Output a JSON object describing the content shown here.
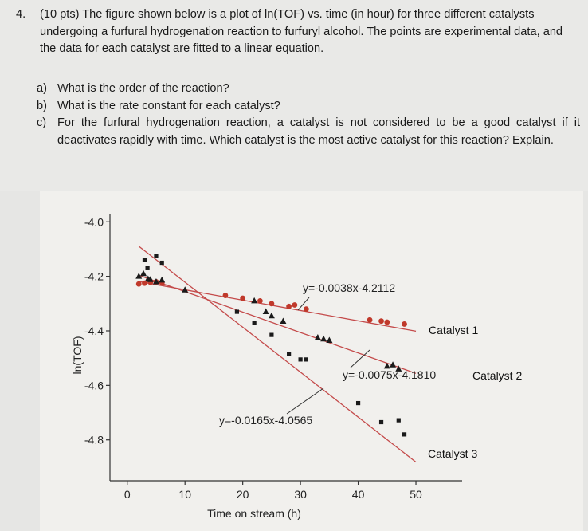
{
  "question": {
    "number": "4.",
    "stem": "(10 pts) The figure shown below is a plot of ln(TOF) vs. time (in hour) for three different catalysts undergoing a furfural hydrogenation reaction to furfuryl alcohol. The points are experimental data, and the data for each catalyst are fitted to a linear equation.",
    "parts": [
      {
        "label": "a)",
        "text": "What is the order of the reaction?"
      },
      {
        "label": "b)",
        "text": "What is the rate constant for each catalyst?"
      },
      {
        "label": "c)",
        "text": "For the furfural hydrogenation reaction, a catalyst is not considered to be a good catalyst if it deactivates rapidly with time. Which catalyst is the most active catalyst for this reaction? Explain."
      }
    ]
  },
  "chart_data": {
    "type": "scatter",
    "xlabel": "Time on stream (h)",
    "ylabel": "ln(TOF)",
    "xlim": [
      -3,
      58
    ],
    "ylim": [
      -4.95,
      -3.97
    ],
    "xticks": [
      0,
      10,
      20,
      30,
      40,
      50
    ],
    "yticks": [
      -4.0,
      -4.2,
      -4.4,
      -4.6,
      -4.8
    ],
    "ytick_labels": [
      "-4.0",
      "-4.2",
      "-4.4",
      "-4.6",
      "-4.8"
    ],
    "series": [
      {
        "name": "Catalyst 1",
        "marker": "circle",
        "color": "#c0392b",
        "equation": "y=-0.0038x-4.2112",
        "slope": -0.0038,
        "intercept": -4.2112,
        "fit_range": [
          2,
          50
        ],
        "points": [
          [
            2,
            -4.228
          ],
          [
            3,
            -4.225
          ],
          [
            4,
            -4.222
          ],
          [
            5,
            -4.22
          ],
          [
            6,
            -4.224
          ],
          [
            17,
            -4.27
          ],
          [
            20,
            -4.28
          ],
          [
            23,
            -4.29
          ],
          [
            25,
            -4.3
          ],
          [
            28,
            -4.31
          ],
          [
            29,
            -4.305
          ],
          [
            31,
            -4.32
          ],
          [
            42,
            -4.36
          ],
          [
            44,
            -4.364
          ],
          [
            45,
            -4.368
          ],
          [
            48,
            -4.375
          ]
        ]
      },
      {
        "name": "Catalyst 2",
        "marker": "triangle",
        "color": "#1a1a1a",
        "equation": "y=-0.0075x-4.1810",
        "slope": -0.0075,
        "intercept": -4.181,
        "fit_range": [
          2,
          50
        ],
        "points": [
          [
            2,
            -4.2
          ],
          [
            2.8,
            -4.19
          ],
          [
            3.6,
            -4.21
          ],
          [
            4,
            -4.212
          ],
          [
            5,
            -4.22
          ],
          [
            6,
            -4.214
          ],
          [
            10,
            -4.25
          ],
          [
            22,
            -4.29
          ],
          [
            24,
            -4.33
          ],
          [
            25,
            -4.345
          ],
          [
            27,
            -4.365
          ],
          [
            33,
            -4.425
          ],
          [
            34,
            -4.43
          ],
          [
            35,
            -4.435
          ],
          [
            45,
            -4.53
          ],
          [
            46,
            -4.525
          ],
          [
            47,
            -4.54
          ]
        ]
      },
      {
        "name": "Catalyst 3",
        "marker": "square",
        "color": "#1a1a1a",
        "equation": "y=-0.0165x-4.0565",
        "slope": -0.0165,
        "intercept": -4.0565,
        "fit_range": [
          2,
          50
        ],
        "points": [
          [
            3,
            -4.14
          ],
          [
            3.5,
            -4.17
          ],
          [
            5,
            -4.125
          ],
          [
            6,
            -4.15
          ],
          [
            19,
            -4.33
          ],
          [
            22,
            -4.37
          ],
          [
            25,
            -4.415
          ],
          [
            28,
            -4.485
          ],
          [
            30,
            -4.505
          ],
          [
            31,
            -4.505
          ],
          [
            40,
            -4.665
          ],
          [
            44,
            -4.735
          ],
          [
            47,
            -4.728
          ],
          [
            48,
            -4.78
          ]
        ]
      }
    ],
    "grid": false,
    "legend": "inline labels at right"
  }
}
